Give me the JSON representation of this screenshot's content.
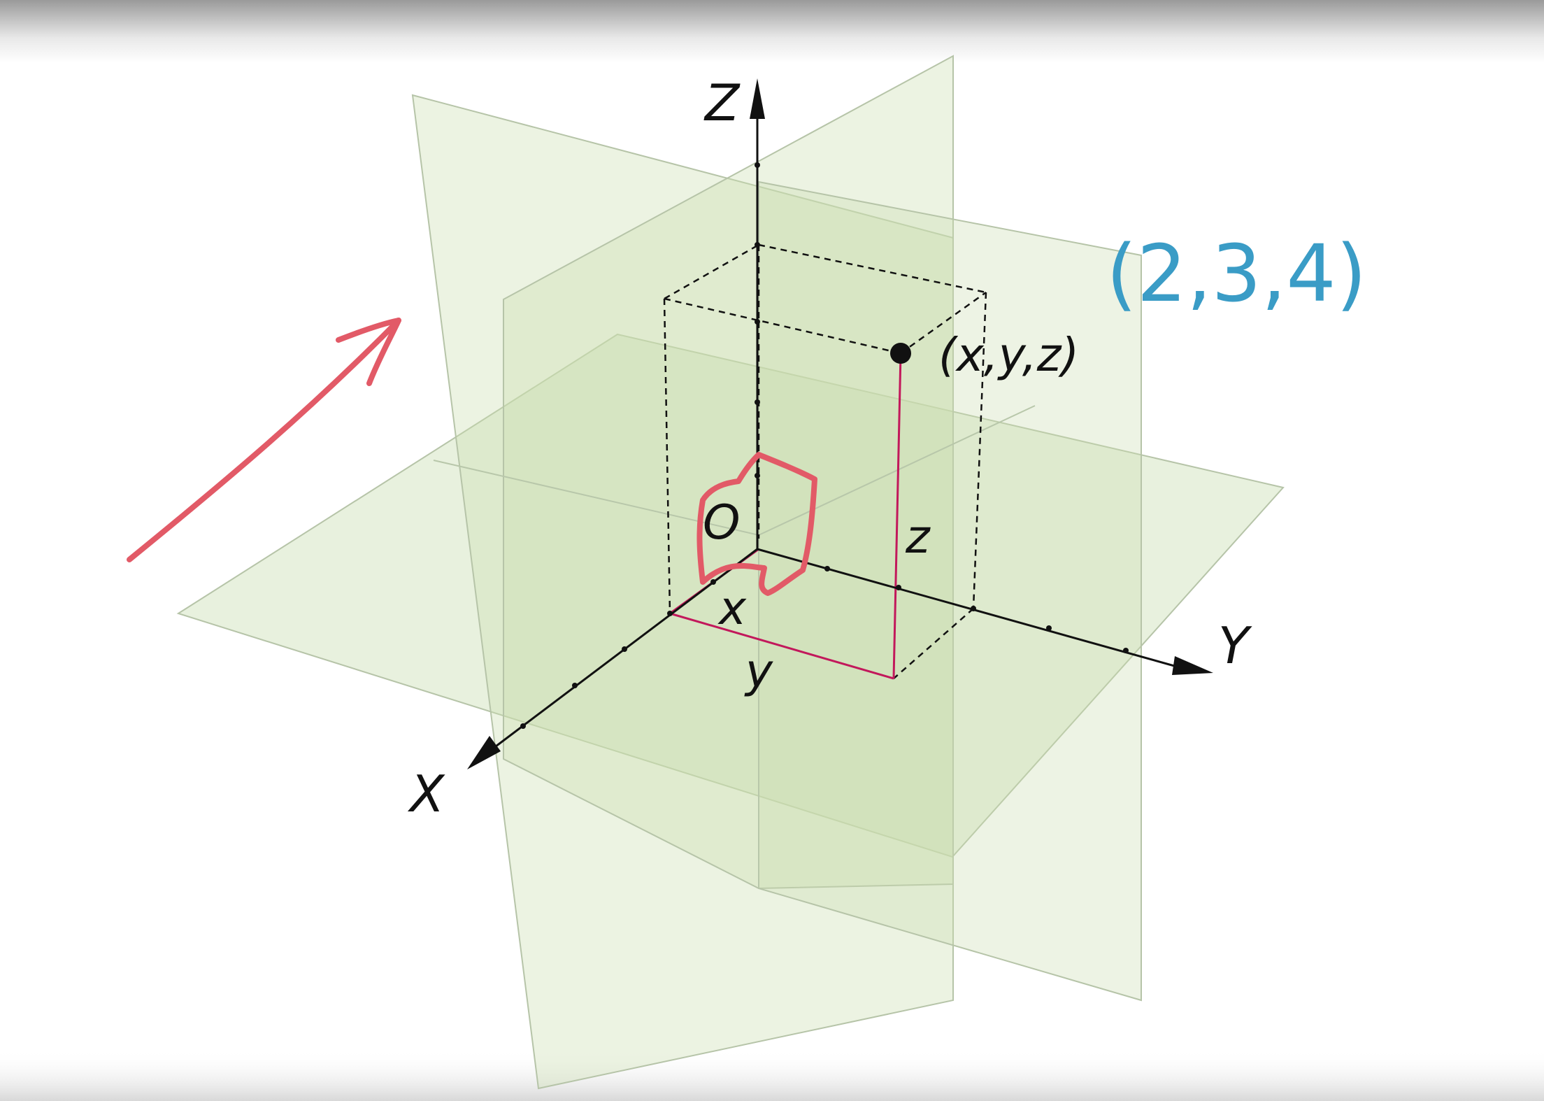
{
  "labels": {
    "z_axis": "Z",
    "x_axis": "X",
    "y_axis": "Y",
    "origin": "O",
    "point": "(x,y,z)",
    "seg_x": "x",
    "seg_y": "y",
    "seg_z": "z"
  },
  "annotation": {
    "coords": "(2,3,4)"
  },
  "colors": {
    "plane_fill": "#c9ddb0",
    "plane_edge": "#b6c4a8",
    "axis": "#111111",
    "magenta_line": "#c2185b",
    "ink_red": "#e25a67",
    "ink_blue": "#3a9cc6"
  }
}
